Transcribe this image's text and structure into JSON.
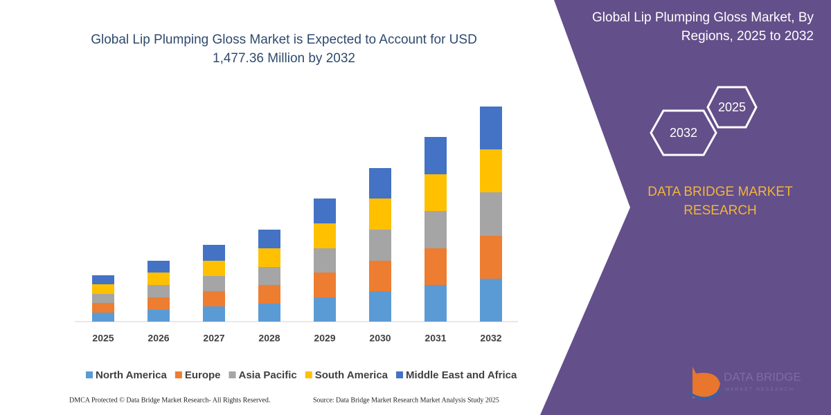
{
  "chart_data": {
    "type": "stacked_bar",
    "title": "Global Lip Plumping Gloss Market is Expected to Account for USD 1,477.36 Million by 2032",
    "categories": [
      "2025",
      "2026",
      "2027",
      "2028",
      "2029",
      "2030",
      "2031",
      "2032"
    ],
    "series": [
      {
        "name": "North America",
        "color": "#5b9bd5",
        "values": [
          13,
          17,
          22,
          26,
          35,
          44,
          53,
          62
        ]
      },
      {
        "name": "Europe",
        "color": "#ed7d31",
        "values": [
          14,
          18,
          22,
          27,
          36,
          44,
          53,
          62
        ]
      },
      {
        "name": "Asia Pacific",
        "color": "#a5a5a5",
        "values": [
          13,
          18,
          22,
          26,
          35,
          45,
          54,
          63
        ]
      },
      {
        "name": "South America",
        "color": "#ffc000",
        "values": [
          14,
          18,
          22,
          27,
          36,
          45,
          53,
          62
        ]
      },
      {
        "name": "Middle East and Africa",
        "color": "#4472c4",
        "values": [
          13,
          17,
          23,
          27,
          36,
          44,
          54,
          62
        ]
      }
    ]
  },
  "side_panel": {
    "title": "Global Lip Plumping Gloss Market, By Regions, 2025 to 2032",
    "hexagons": [
      "2025",
      "2032"
    ],
    "brand": "DATA BRIDGE MARKET RESEARCH",
    "logo": {
      "name": "DATA BRIDGE",
      "tagline": "MARKET RESEARCH"
    }
  },
  "footer": {
    "left": "DMCA Protected © Data Bridge Market Research-  All Rights Reserved.",
    "right": "Source: Data Bridge Market Research  Market Analysis Study 2025"
  }
}
